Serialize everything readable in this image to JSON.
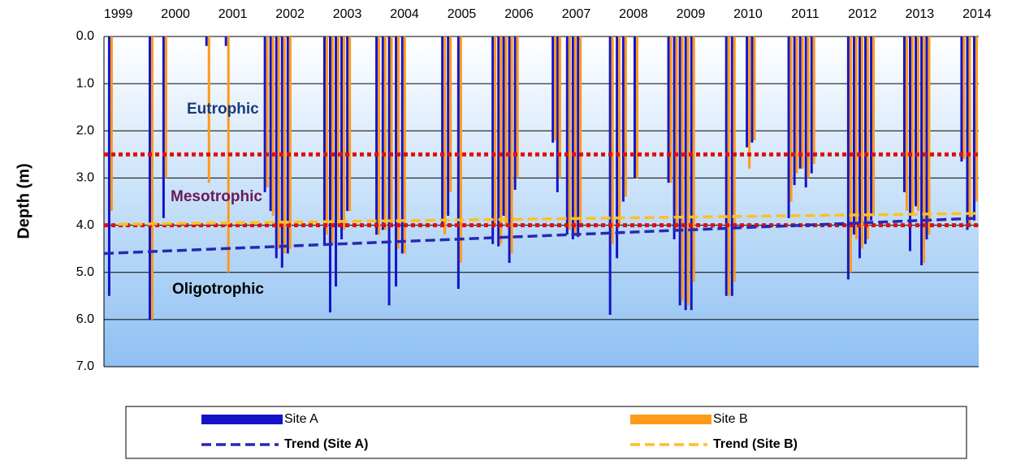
{
  "chart_data": {
    "type": "bar",
    "y_label": "Depth (m)",
    "xlim": [
      1998.75,
      2014.03
    ],
    "xticks": [
      1999,
      2000,
      2001,
      2002,
      2003,
      2004,
      2005,
      2006,
      2007,
      2008,
      2009,
      2010,
      2011,
      2012,
      2013,
      2014
    ],
    "ylim": [
      0,
      7
    ],
    "yticks": [
      {
        "value": 0,
        "label": "0.0"
      },
      {
        "value": 1,
        "label": "1.0"
      },
      {
        "value": 2,
        "label": "2.0"
      },
      {
        "value": 3,
        "label": "3.0"
      },
      {
        "value": 4,
        "label": "4.0"
      },
      {
        "value": 5,
        "label": "5.0"
      },
      {
        "value": 6,
        "label": "6.0"
      },
      {
        "value": 7,
        "label": "7.0"
      }
    ],
    "inverted_y": true,
    "grid": true,
    "x": [
      1998.82,
      1999.53,
      1999.77,
      2000.52,
      2000.86,
      2001.54,
      2001.64,
      2001.74,
      2001.84,
      2001.94,
      2002.58,
      2002.68,
      2002.78,
      2002.88,
      2002.98,
      2003.49,
      2003.6,
      2003.71,
      2003.83,
      2003.94,
      2004.64,
      2004.74,
      2004.92,
      2005.52,
      2005.62,
      2005.71,
      2005.81,
      2005.91,
      2006.57,
      2006.65,
      2006.82,
      2006.92,
      2007.01,
      2007.57,
      2007.69,
      2007.8,
      2008.0,
      2008.59,
      2008.69,
      2008.79,
      2008.89,
      2008.99,
      2009.6,
      2009.7,
      2009.96,
      2010.05,
      2010.69,
      2010.79,
      2010.89,
      2010.99,
      2011.09,
      2011.73,
      2011.83,
      2011.93,
      2012.03,
      2012.13,
      2012.71,
      2012.81,
      2012.91,
      2013.01,
      2013.1,
      2013.71,
      2013.81,
      2013.93
    ],
    "series": [
      {
        "name": "Site A",
        "color": "#1414c8",
        "values": [
          5.5,
          6.0,
          3.85,
          0.2,
          0.2,
          3.3,
          3.7,
          4.7,
          4.9,
          4.6,
          4.4,
          5.85,
          5.3,
          4.3,
          3.7,
          4.2,
          4.1,
          5.7,
          5.3,
          4.6,
          4.0,
          3.8,
          5.35,
          4.4,
          4.45,
          3.8,
          4.8,
          3.25,
          2.25,
          3.3,
          4.2,
          4.3,
          4.25,
          5.9,
          4.7,
          3.5,
          3.0,
          3.1,
          4.3,
          5.7,
          5.8,
          5.8,
          5.5,
          5.5,
          2.35,
          2.25,
          3.85,
          3.15,
          2.8,
          3.2,
          2.9,
          5.15,
          4.2,
          4.7,
          4.4,
          3.9,
          3.3,
          4.55,
          3.6,
          4.85,
          4.3,
          2.65,
          4.1,
          3.9
        ]
      },
      {
        "name": "Site B",
        "color": "#ff9a1a",
        "values": [
          3.7,
          6.0,
          3.0,
          3.1,
          5.0,
          3.2,
          3.8,
          4.5,
          4.6,
          4.5,
          4.2,
          4.4,
          4.0,
          4.1,
          3.7,
          4.2,
          4.1,
          4.0,
          4.5,
          4.6,
          4.2,
          3.3,
          4.8,
          4.0,
          4.4,
          4.0,
          4.6,
          3.0,
          2.2,
          3.0,
          4.1,
          4.2,
          4.0,
          4.4,
          4.0,
          3.4,
          3.0,
          3.1,
          4.1,
          5.6,
          5.7,
          5.2,
          5.5,
          5.2,
          2.8,
          2.2,
          3.5,
          2.9,
          2.8,
          3.0,
          2.7,
          5.0,
          4.3,
          4.5,
          4.3,
          3.8,
          3.7,
          3.8,
          3.7,
          4.8,
          4.2,
          2.6,
          4.0,
          3.5
        ]
      }
    ],
    "trends": [
      {
        "name": "Trend (Site A)",
        "color": "#2828b4",
        "x": [
          1998.75,
          2014.03
        ],
        "values": [
          4.6,
          3.85
        ]
      },
      {
        "name": "Trend (Site B)",
        "color": "#ffc020",
        "x": [
          1999.0,
          2014.03
        ],
        "values": [
          3.98,
          3.75
        ]
      }
    ],
    "thresholds": [
      {
        "value": 2.5,
        "color": "#e01010"
      },
      {
        "value": 4.0,
        "color": "#e01010"
      }
    ],
    "zones": [
      {
        "label": "Eutrophic",
        "color": "#1a3c78"
      },
      {
        "label": "Mesotrophic",
        "color": "#6a1a5a"
      },
      {
        "label": "Oligotrophic",
        "color": "#000000"
      }
    ]
  }
}
